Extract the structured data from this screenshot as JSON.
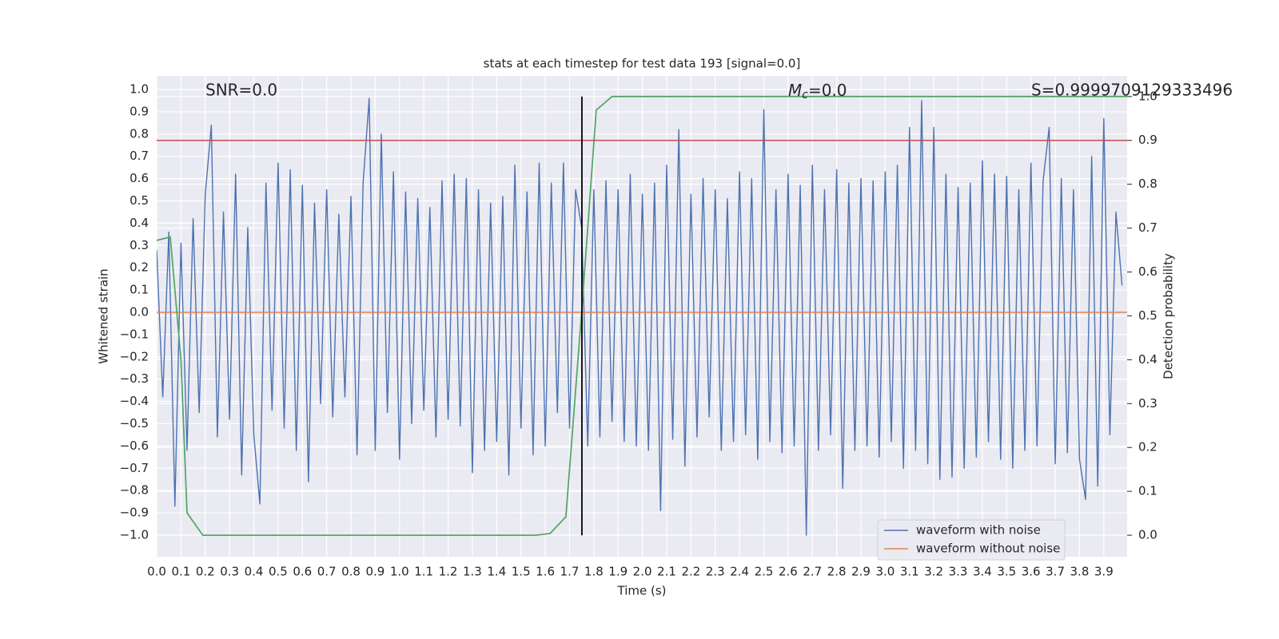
{
  "chart_data": {
    "type": "line",
    "title": "stats at each timestep for test data 193 [signal=0.0]",
    "xlabel": "Time (s)",
    "ylabel": "Whitened strain",
    "y2label": "Detection probability",
    "annotations": {
      "snr": "SNR=0.0",
      "mc_symbol": "M",
      "mc_subscript": "c",
      "mc_text": "=0.0",
      "s": "S=0.9999709129333496"
    },
    "xlim": [
      0,
      3.996
    ],
    "ylim": [
      -1.097,
      1.061
    ],
    "y2lim": [
      -0.049,
      1.047
    ],
    "grid": true,
    "legend": "lower right",
    "xticks": [
      {
        "value": 0,
        "label": "0.0"
      },
      {
        "value": 0.1,
        "label": "0.1"
      },
      {
        "value": 0.2,
        "label": "0.2"
      },
      {
        "value": 0.3,
        "label": "0.3"
      },
      {
        "value": 0.4,
        "label": "0.4"
      },
      {
        "value": 0.5,
        "label": "0.5"
      },
      {
        "value": 0.6,
        "label": "0.6"
      },
      {
        "value": 0.7,
        "label": "0.7"
      },
      {
        "value": 0.8,
        "label": "0.8"
      },
      {
        "value": 0.9,
        "label": "0.9"
      },
      {
        "value": 1,
        "label": "1.0"
      },
      {
        "value": 1.1,
        "label": "1.1"
      },
      {
        "value": 1.2,
        "label": "1.2"
      },
      {
        "value": 1.3,
        "label": "1.3"
      },
      {
        "value": 1.4,
        "label": "1.4"
      },
      {
        "value": 1.5,
        "label": "1.5"
      },
      {
        "value": 1.6,
        "label": "1.6"
      },
      {
        "value": 1.7,
        "label": "1.7"
      },
      {
        "value": 1.8,
        "label": "1.8"
      },
      {
        "value": 1.9,
        "label": "1.9"
      },
      {
        "value": 2,
        "label": "2.0"
      },
      {
        "value": 2.1,
        "label": "2.1"
      },
      {
        "value": 2.2,
        "label": "2.2"
      },
      {
        "value": 2.3,
        "label": "2.3"
      },
      {
        "value": 2.4,
        "label": "2.4"
      },
      {
        "value": 2.5,
        "label": "2.5"
      },
      {
        "value": 2.6,
        "label": "2.6"
      },
      {
        "value": 2.7,
        "label": "2.7"
      },
      {
        "value": 2.8,
        "label": "2.8"
      },
      {
        "value": 2.9,
        "label": "2.9"
      },
      {
        "value": 3,
        "label": "3.0"
      },
      {
        "value": 3.1,
        "label": "3.1"
      },
      {
        "value": 3.2,
        "label": "3.2"
      },
      {
        "value": 3.3,
        "label": "3.3"
      },
      {
        "value": 3.4,
        "label": "3.4"
      },
      {
        "value": 3.5,
        "label": "3.5"
      },
      {
        "value": 3.6,
        "label": "3.6"
      },
      {
        "value": 3.7,
        "label": "3.7"
      },
      {
        "value": 3.8,
        "label": "3.8"
      },
      {
        "value": 3.9,
        "label": "3.9"
      }
    ],
    "yticks": [
      {
        "value": -1,
        "label": "−1.0"
      },
      {
        "value": -0.9,
        "label": "−0.9"
      },
      {
        "value": -0.8,
        "label": "−0.8"
      },
      {
        "value": -0.7,
        "label": "−0.7"
      },
      {
        "value": -0.6,
        "label": "−0.6"
      },
      {
        "value": -0.5,
        "label": "−0.5"
      },
      {
        "value": -0.4,
        "label": "−0.4"
      },
      {
        "value": -0.3,
        "label": "−0.3"
      },
      {
        "value": -0.2,
        "label": "−0.2"
      },
      {
        "value": -0.1,
        "label": "−0.1"
      },
      {
        "value": 0,
        "label": "0.0"
      },
      {
        "value": 0.1,
        "label": "0.1"
      },
      {
        "value": 0.2,
        "label": "0.2"
      },
      {
        "value": 0.3,
        "label": "0.3"
      },
      {
        "value": 0.4,
        "label": "0.4"
      },
      {
        "value": 0.5,
        "label": "0.5"
      },
      {
        "value": 0.6,
        "label": "0.6"
      },
      {
        "value": 0.7,
        "label": "0.7"
      },
      {
        "value": 0.8,
        "label": "0.8"
      },
      {
        "value": 0.9,
        "label": "0.9"
      },
      {
        "value": 1,
        "label": "1.0"
      }
    ],
    "y2ticks": [
      {
        "value": 0,
        "label": "0.0"
      },
      {
        "value": 0.1,
        "label": "0.1"
      },
      {
        "value": 0.2,
        "label": "0.2"
      },
      {
        "value": 0.3,
        "label": "0.3"
      },
      {
        "value": 0.4,
        "label": "0.4"
      },
      {
        "value": 0.5,
        "label": "0.5"
      },
      {
        "value": 0.6,
        "label": "0.6"
      },
      {
        "value": 0.7,
        "label": "0.7"
      },
      {
        "value": 0.8,
        "label": "0.8"
      },
      {
        "value": 0.9,
        "label": "0.9"
      },
      {
        "value": 1,
        "label": "1.0"
      }
    ],
    "series": [
      {
        "name": "waveform with noise",
        "color": "#4c72b0",
        "x": [
          0,
          0.025,
          0.05,
          0.075,
          0.1,
          0.125,
          0.15,
          0.175,
          0.2,
          0.225,
          0.25,
          0.275,
          0.3,
          0.325,
          0.35,
          0.375,
          0.4,
          0.425,
          0.45,
          0.475,
          0.5,
          0.525,
          0.55,
          0.575,
          0.6,
          0.625,
          0.65,
          0.675,
          0.7,
          0.725,
          0.75,
          0.775,
          0.8,
          0.825,
          0.85,
          0.875,
          0.9,
          0.925,
          0.95,
          0.975,
          1,
          1.025,
          1.05,
          1.075,
          1.1,
          1.125,
          1.15,
          1.175,
          1.2,
          1.225,
          1.25,
          1.275,
          1.3,
          1.325,
          1.35,
          1.375,
          1.4,
          1.425,
          1.45,
          1.475,
          1.5,
          1.525,
          1.55,
          1.575,
          1.6,
          1.625,
          1.65,
          1.675,
          1.7,
          1.725,
          1.75,
          1.775,
          1.8,
          1.825,
          1.85,
          1.875,
          1.9,
          1.925,
          1.95,
          1.975,
          2,
          2.025,
          2.05,
          2.075,
          2.1,
          2.125,
          2.15,
          2.175,
          2.2,
          2.225,
          2.25,
          2.275,
          2.3,
          2.325,
          2.35,
          2.375,
          2.4,
          2.425,
          2.45,
          2.475,
          2.5,
          2.525,
          2.55,
          2.575,
          2.6,
          2.625,
          2.65,
          2.675,
          2.7,
          2.725,
          2.75,
          2.775,
          2.8,
          2.825,
          2.85,
          2.875,
          2.9,
          2.925,
          2.95,
          2.975,
          3,
          3.025,
          3.05,
          3.075,
          3.1,
          3.125,
          3.15,
          3.175,
          3.2,
          3.225,
          3.25,
          3.275,
          3.3,
          3.325,
          3.35,
          3.375,
          3.4,
          3.425,
          3.45,
          3.475,
          3.5,
          3.525,
          3.55,
          3.575,
          3.6,
          3.625,
          3.65,
          3.675,
          3.7,
          3.725,
          3.75,
          3.775,
          3.8,
          3.825,
          3.85,
          3.875,
          3.9,
          3.925,
          3.95,
          3.975
        ],
        "values": [
          0.28,
          -0.38,
          0.36,
          -0.87,
          0.31,
          -0.62,
          0.42,
          -0.45,
          0.53,
          0.84,
          -0.56,
          0.45,
          -0.48,
          0.62,
          -0.73,
          0.38,
          -0.55,
          -0.86,
          0.58,
          -0.44,
          0.67,
          -0.52,
          0.64,
          -0.62,
          0.57,
          -0.76,
          0.49,
          -0.41,
          0.55,
          -0.47,
          0.44,
          -0.38,
          0.52,
          -0.64,
          0.58,
          0.96,
          -0.62,
          0.8,
          -0.45,
          0.63,
          -0.66,
          0.54,
          -0.5,
          0.51,
          -0.44,
          0.47,
          -0.56,
          0.59,
          -0.48,
          0.62,
          -0.51,
          0.6,
          -0.72,
          0.55,
          -0.62,
          0.49,
          -0.58,
          0.52,
          -0.73,
          0.66,
          -0.52,
          0.54,
          -0.64,
          0.67,
          -0.6,
          0.58,
          -0.45,
          0.67,
          -0.52,
          0.55,
          0.38,
          -0.6,
          0.55,
          -0.56,
          0.59,
          -0.49,
          0.55,
          -0.58,
          0.62,
          -0.6,
          0.53,
          -0.62,
          0.58,
          -0.89,
          0.66,
          -0.57,
          0.82,
          -0.69,
          0.53,
          -0.56,
          0.6,
          -0.47,
          0.55,
          -0.62,
          0.51,
          -0.58,
          0.63,
          -0.55,
          0.6,
          -0.66,
          0.91,
          -0.58,
          0.55,
          -0.63,
          0.62,
          -0.6,
          0.57,
          -1.0,
          0.66,
          -0.62,
          0.55,
          -0.55,
          0.64,
          -0.79,
          0.58,
          -0.62,
          0.6,
          -0.6,
          0.59,
          -0.65,
          0.63,
          -0.58,
          0.66,
          -0.7,
          0.83,
          -0.62,
          0.95,
          -0.68,
          0.83,
          -0.75,
          0.62,
          -0.74,
          0.56,
          -0.7,
          0.58,
          -0.65,
          0.68,
          -0.58,
          0.62,
          -0.66,
          0.61,
          -0.7,
          0.55,
          -0.62,
          0.67,
          -0.6,
          0.59,
          0.83,
          -0.68,
          0.6,
          -0.63,
          0.55,
          -0.66,
          -0.84,
          0.7,
          -0.78,
          0.87,
          -0.55,
          0.45,
          0.12
        ]
      },
      {
        "name": "waveform without noise",
        "color": "#dd8452",
        "x": [
          0,
          3.996
        ],
        "values": [
          0,
          0
        ]
      }
    ],
    "probability": {
      "axis": "y2",
      "color": "#55a868",
      "x": [
        0,
        0.056,
        0.1,
        0.125,
        0.19,
        1.56,
        1.62,
        1.685,
        1.75,
        1.81,
        1.875,
        3.996
      ],
      "values": [
        0.672,
        0.68,
        0.4,
        0.051,
        0,
        0,
        0.004,
        0.042,
        0.51,
        0.969,
        1,
        1
      ]
    },
    "threshold": {
      "axis": "y2",
      "value": 0.9,
      "color": "#c44e52"
    },
    "vline": {
      "x": 1.751,
      "y2span": [
        0,
        1
      ],
      "color": "#000000"
    }
  }
}
